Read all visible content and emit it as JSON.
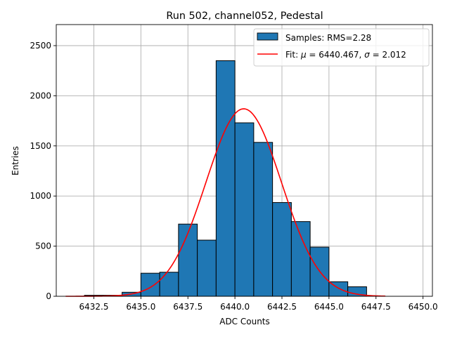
{
  "chart_data": {
    "type": "bar",
    "title": "Run 502, channel052, Pedestal",
    "xlabel": "ADC Counts",
    "ylabel": "Entries",
    "xlim": [
      6430.5,
      6450.5
    ],
    "ylim": [
      0,
      2710
    ],
    "grid": true,
    "legend_position": "top-right",
    "colors": {
      "bars": "#1f77b4",
      "edge": "#000000",
      "fit": "#ff0000",
      "grid": "#b0b0b0"
    },
    "x_ticks": [
      6432.5,
      6435.0,
      6437.5,
      6440.0,
      6442.5,
      6445.0,
      6447.5,
      6450.0
    ],
    "x_tick_labels": [
      "6432.5",
      "6435.0",
      "6437.5",
      "6440.0",
      "6442.5",
      "6445.0",
      "6447.5",
      "6450.0"
    ],
    "y_ticks": [
      0,
      500,
      1000,
      1500,
      2000,
      2500
    ],
    "y_tick_labels": [
      "0",
      "500",
      "1000",
      "1500",
      "2000",
      "2500"
    ],
    "histogram": {
      "name": "Samples: RMS=2.28",
      "bins": [
        {
          "x0": 6432,
          "x1": 6433,
          "count": 10
        },
        {
          "x0": 6433,
          "x1": 6434,
          "count": 10
        },
        {
          "x0": 6434,
          "x1": 6435,
          "count": 40
        },
        {
          "x0": 6435,
          "x1": 6436,
          "count": 230
        },
        {
          "x0": 6436,
          "x1": 6437,
          "count": 240
        },
        {
          "x0": 6437,
          "x1": 6438,
          "count": 720
        },
        {
          "x0": 6438,
          "x1": 6439,
          "count": 560
        },
        {
          "x0": 6439,
          "x1": 6440,
          "count": 2350
        },
        {
          "x0": 6440,
          "x1": 6441,
          "count": 1730
        },
        {
          "x0": 6441,
          "x1": 6442,
          "count": 1535
        },
        {
          "x0": 6442,
          "x1": 6443,
          "count": 935
        },
        {
          "x0": 6443,
          "x1": 6444,
          "count": 745
        },
        {
          "x0": 6444,
          "x1": 6445,
          "count": 490
        },
        {
          "x0": 6445,
          "x1": 6446,
          "count": 145
        },
        {
          "x0": 6446,
          "x1": 6447,
          "count": 95
        }
      ]
    },
    "fit": {
      "name_prefix": "Fit: ",
      "name_mu": "μ",
      "name_mid": " = 6440.467, ",
      "name_sigma": "σ",
      "name_suffix": " = 2.012",
      "type": "gaussian",
      "mu": 6440.467,
      "sigma": 2.012,
      "amplitude": 1870,
      "x_range": [
        6431,
        6448
      ]
    }
  }
}
